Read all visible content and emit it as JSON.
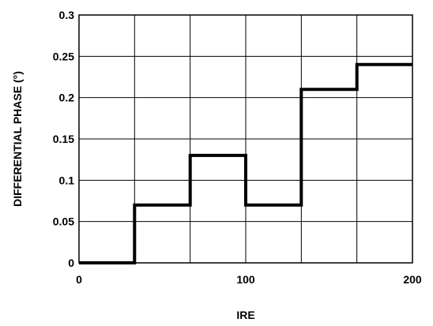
{
  "chart_data": {
    "type": "line",
    "title": "",
    "xlabel": "IRE",
    "ylabel": "DIFFERENTIAL PHASE (°)",
    "xlim": [
      0,
      200
    ],
    "ylim": [
      0,
      0.3
    ],
    "x_ticks": [
      "0",
      "100",
      "200"
    ],
    "y_ticks": [
      "0",
      "0.05",
      "0.1",
      "0.15",
      "0.2",
      "0.25",
      "0.3"
    ],
    "grid": true,
    "step": true,
    "series": [
      {
        "x": [
          0,
          33.3,
          33.3,
          66.7,
          66.7,
          100,
          100,
          133.3,
          133.3,
          166.7,
          166.7,
          200
        ],
        "y": [
          0,
          0,
          0.07,
          0.07,
          0.13,
          0.13,
          0.07,
          0.07,
          0.21,
          0.21,
          0.24,
          0.24
        ]
      }
    ]
  }
}
